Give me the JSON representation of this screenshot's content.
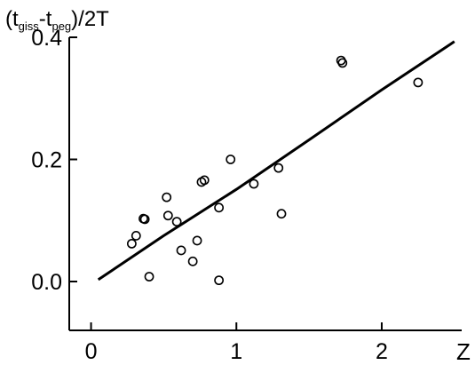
{
  "chart_data": {
    "type": "scatter",
    "title": "",
    "ylabel": {
      "open": "(t",
      "sub1": "giss",
      "mid": "-t",
      "sub2": "peg",
      "close": ")/2T"
    },
    "xlabel": "Z",
    "xlim": [
      -0.15,
      2.55
    ],
    "ylim": [
      -0.08,
      0.4
    ],
    "xticks": [
      0,
      1,
      2
    ],
    "xtick_labels": [
      "0",
      "1",
      "2"
    ],
    "yticks": [
      0.0,
      0.2,
      0.4
    ],
    "ytick_labels": [
      "0.0",
      "0.2",
      "0.4"
    ],
    "grid": false,
    "series": [
      {
        "type": "scatter",
        "marker": "open-circle",
        "x": [
          0.28,
          0.31,
          0.36,
          0.37,
          0.4,
          0.52,
          0.53,
          0.59,
          0.62,
          0.7,
          0.73,
          0.76,
          0.78,
          0.88,
          0.88,
          0.96,
          1.12,
          1.29,
          1.31,
          1.72,
          1.73,
          2.25
        ],
        "y": [
          0.062,
          0.075,
          0.103,
          0.102,
          0.008,
          0.138,
          0.108,
          0.098,
          0.051,
          0.033,
          0.067,
          0.163,
          0.166,
          0.121,
          0.002,
          0.2,
          0.16,
          0.186,
          0.111,
          0.362,
          0.358,
          0.326
        ]
      },
      {
        "type": "line",
        "x": [
          0.05,
          0.5,
          1.0,
          1.5,
          2.0,
          2.5
        ],
        "y": [
          0.003,
          0.075,
          0.151,
          0.232,
          0.314,
          0.393
        ]
      }
    ],
    "colors": {
      "axis": "#000000",
      "marker": "#000000",
      "line": "#000000"
    }
  }
}
